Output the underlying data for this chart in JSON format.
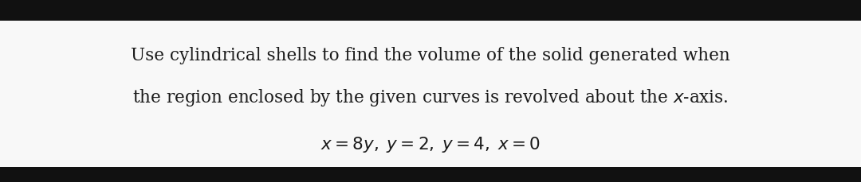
{
  "background_color": "#ffffff",
  "outer_background": "#111111",
  "content_bg": "#f8f8f8",
  "text_color": "#1a1a1a",
  "line1": "Use cylindrical shells to find the volume of the solid generated when",
  "line2": "the region enclosed by the given curves is revolved about the $x$-axis.",
  "line3": "$x = 8y, \\; y = 2, \\; y = 4, \\; x = 0$",
  "font_size_body": 15.5,
  "font_size_math": 15.5,
  "fig_width": 10.8,
  "fig_height": 2.29,
  "top_bar_height": 0.115,
  "bottom_bar_height": 0.085
}
